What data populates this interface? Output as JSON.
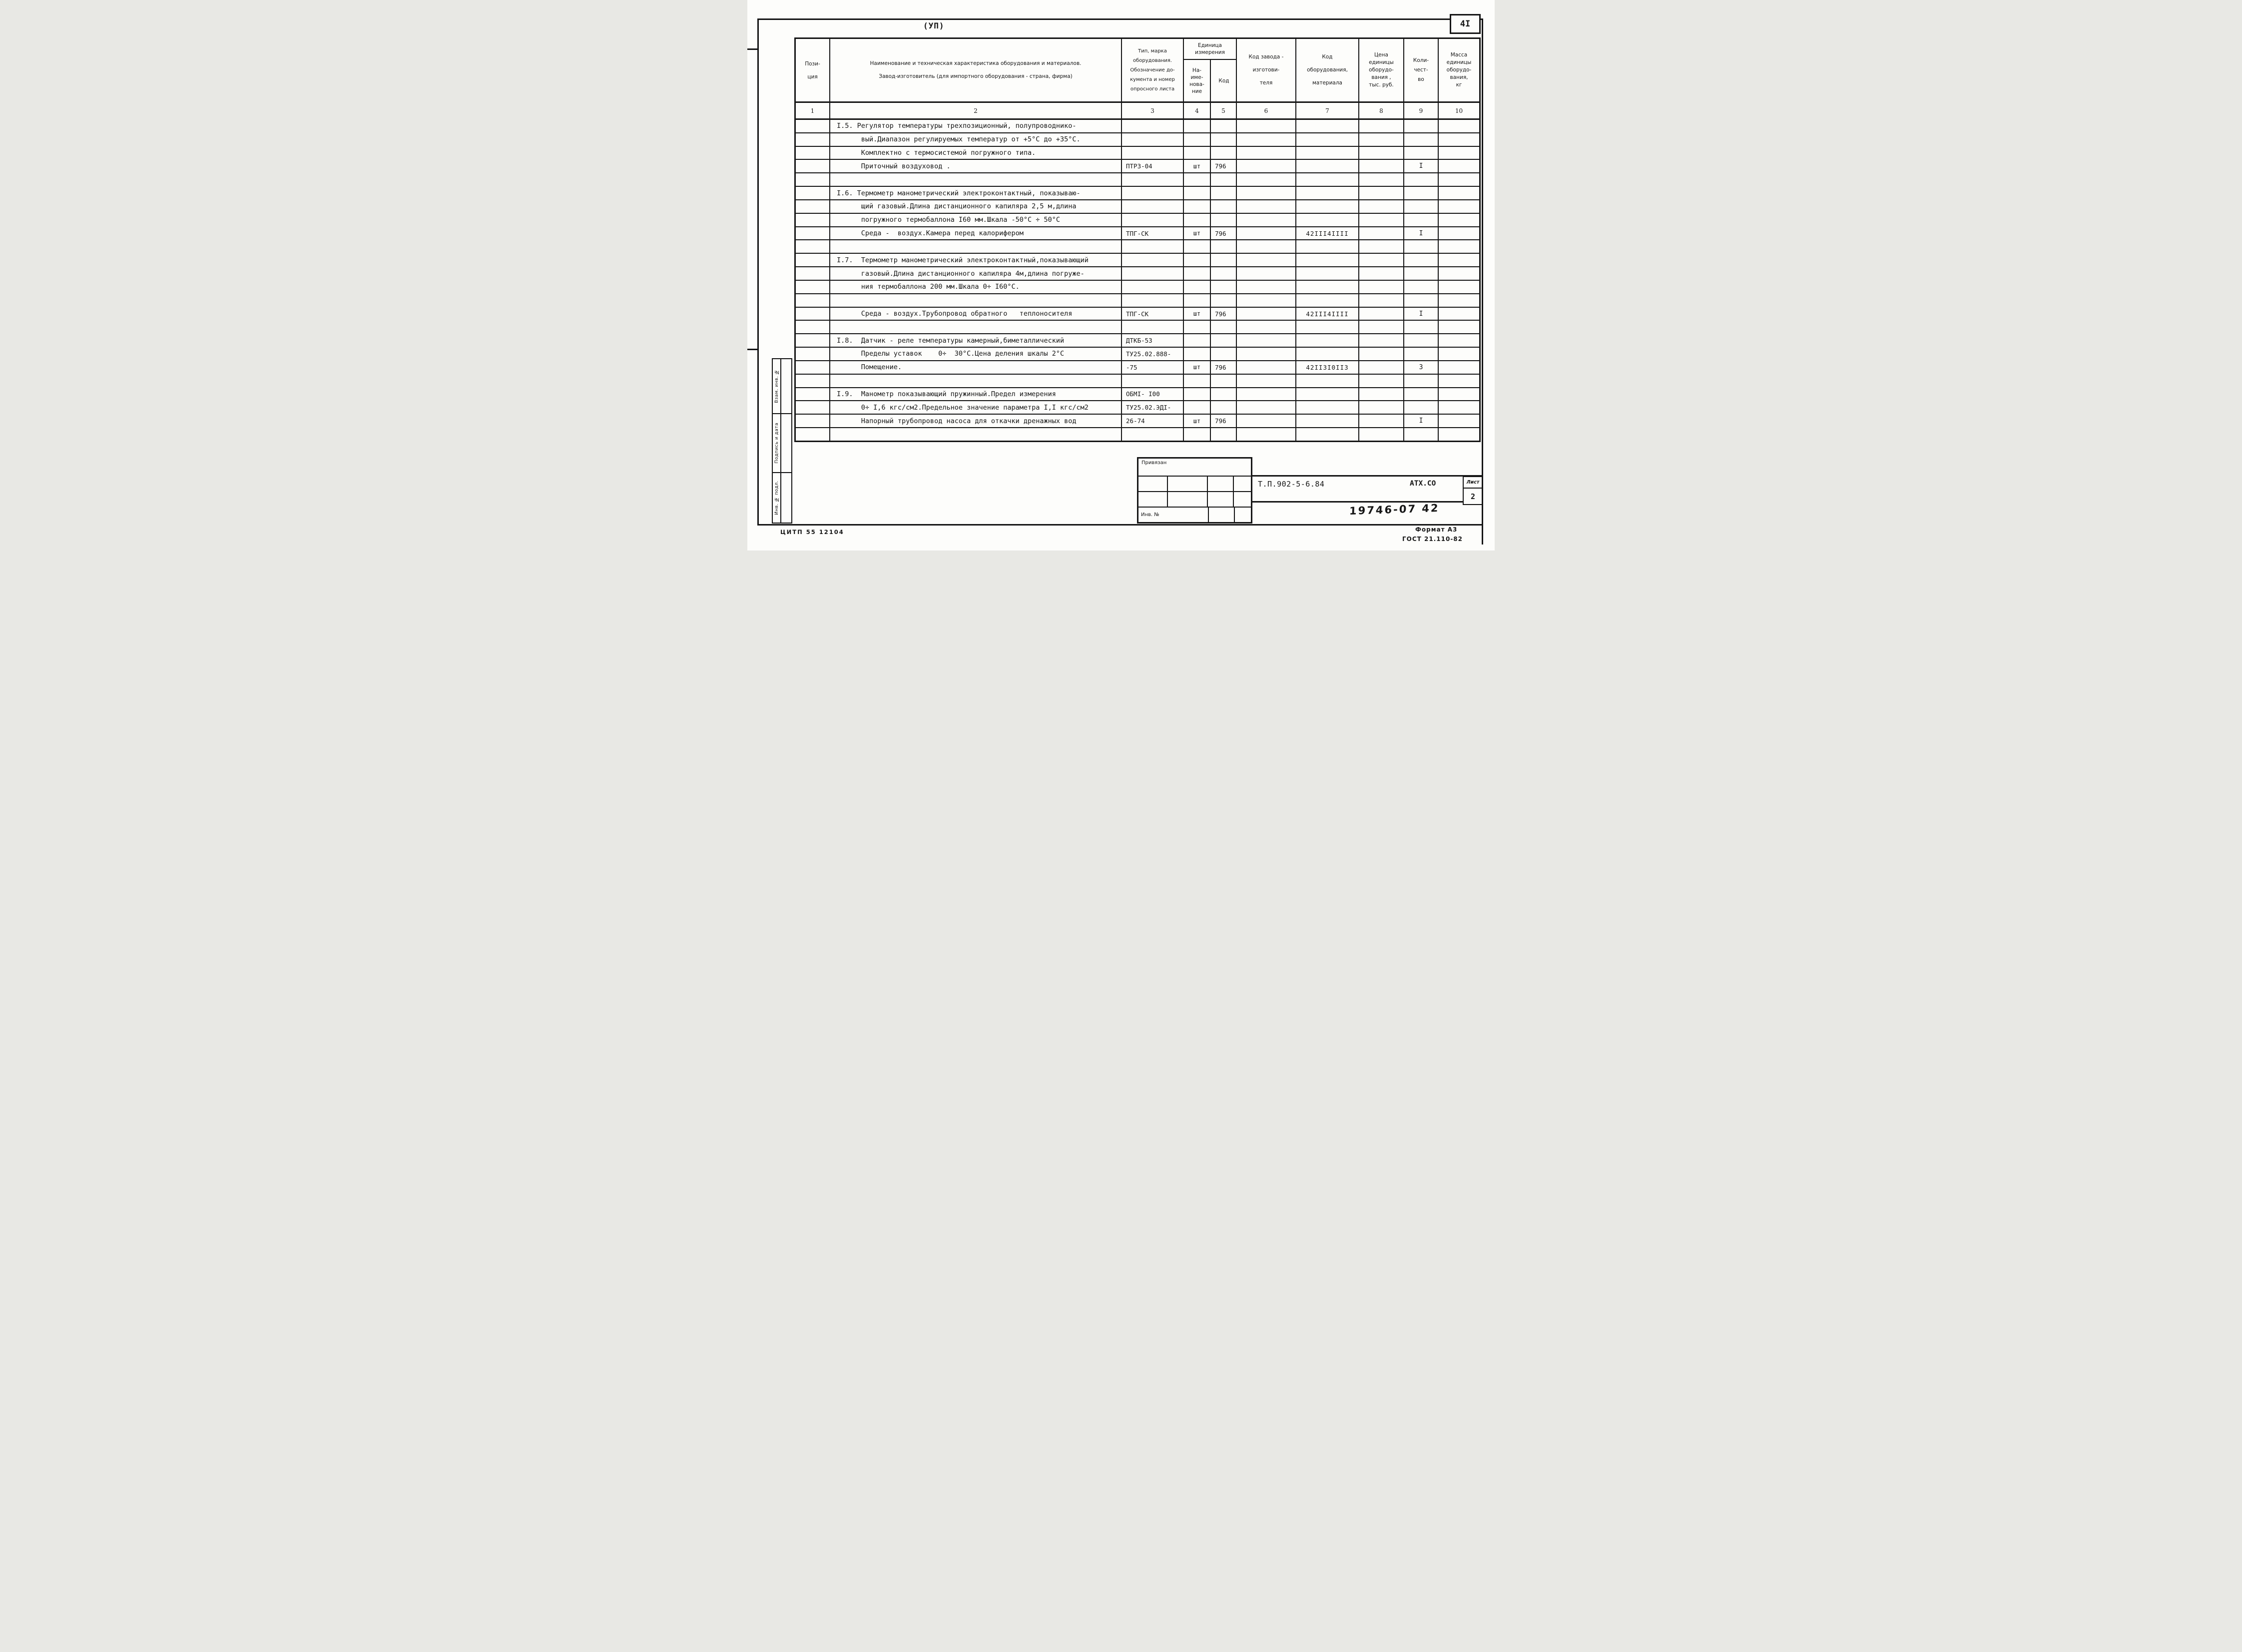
{
  "page": {
    "corner_label": "(УП)",
    "page_number": "4I",
    "cipher": "ЦИТП 55 12104",
    "format_note": "Формат А3",
    "gost_note": "ГОСТ 21.110-82",
    "doc_number": "Т.П.902-5-6.84",
    "org_code": "АТХ.СО",
    "sheet_label": "Лист",
    "sheet_number": "2",
    "handwritten_number": "19746-07  42"
  },
  "sidebar": {
    "items": [
      "Взам. инв. №",
      "Подпись и дата",
      "Инв. № подл."
    ]
  },
  "stamp": {
    "title": "Привязан",
    "inv_label": "Инв. №"
  },
  "table": {
    "headers": {
      "position": "Пози-\nция",
      "name": "Наименование и техническая характеристика  оборудования и материалов.\n\nЗавод-изготовитель  (для импортного оборудования -  страна, фирма)",
      "type": "Тип,    марка\nоборудования.\nОбозначение до-\nкумента и номер\nопросного листа",
      "unit_group": "Единица\nизмерения",
      "unit_name": "На-\nиме-\nнова-\nние",
      "unit_code": "Код",
      "factory_code": "Код  завода -\n\nизготови-\n\nтеля",
      "equip_code": "Код\n\nоборудования,\n\nматериала",
      "price": "Цена\nединицы\nоборудо-\nвания ,\nтыс. руб.",
      "quantity": "Коли-\nчест-\nво",
      "mass": "Масса\nединицы\nоборудо-\nвания,\nкг"
    },
    "column_numbers": [
      "1",
      "2",
      "3",
      "4",
      "5",
      "6",
      "7",
      "8",
      "9",
      "10"
    ],
    "rows": [
      [
        "",
        "I.5. Регулятор температуры трехпозиционный, полупроводнико-",
        "",
        "",
        "",
        "",
        "",
        "",
        "",
        ""
      ],
      [
        "",
        "      вый.Диапазон регулируемых температур от +5°С до +35°С.",
        "",
        "",
        "",
        "",
        "",
        "",
        "",
        ""
      ],
      [
        "",
        "      Комплектно с термосистемой погружного типа.",
        "",
        "",
        "",
        "",
        "",
        "",
        "",
        ""
      ],
      [
        "",
        "      Приточный воздуховод .",
        "ПТРЗ-04",
        "шт",
        "796",
        "",
        "",
        "",
        "I",
        ""
      ],
      [
        "",
        "",
        "",
        "",
        "",
        "",
        "",
        "",
        "",
        ""
      ],
      [
        "",
        "I.6. Термометр манометрический электроконтактный, показываю-",
        "",
        "",
        "",
        "",
        "",
        "",
        "",
        ""
      ],
      [
        "",
        "      щий газовый.Длина дистанционного капиляра 2,5 м,длина",
        "",
        "",
        "",
        "",
        "",
        "",
        "",
        ""
      ],
      [
        "",
        "      погружного термобаллона I60 мм.Шкала -50°С ÷ 50°С",
        "",
        "",
        "",
        "",
        "",
        "",
        "",
        ""
      ],
      [
        "",
        "      Среда -  воздух.Камера перед калорифером",
        "ТПГ-СК",
        "шт",
        "796",
        "",
        "42III4IIII",
        "",
        "I",
        ""
      ],
      [
        "",
        "",
        "",
        "",
        "",
        "",
        "",
        "",
        "",
        ""
      ],
      [
        "",
        "I.7.  Термометр манометрический электроконтактный,показывающий",
        "",
        "",
        "",
        "",
        "",
        "",
        "",
        ""
      ],
      [
        "",
        "      газовый.Длина дистанционного капиляра 4м,длина погруже-",
        "",
        "",
        "",
        "",
        "",
        "",
        "",
        ""
      ],
      [
        "",
        "      ния термобаллона 200 мм.Шкала 0÷ I60°С.",
        "",
        "",
        "",
        "",
        "",
        "",
        "",
        ""
      ],
      [
        "",
        "",
        "",
        "",
        "",
        "",
        "",
        "",
        "",
        ""
      ],
      [
        "",
        "      Среда - воздух.Трубопровод обратного   теплоносителя",
        "ТПГ-СК",
        "шт",
        "796",
        "",
        "42III4IIII",
        "",
        "I",
        ""
      ],
      [
        "",
        "",
        "",
        "",
        "",
        "",
        "",
        "",
        "",
        ""
      ],
      [
        "",
        "I.8.  Датчик - реле температуры камерный,биметаллический",
        "ДТКБ-53",
        "",
        "",
        "",
        "",
        "",
        "",
        ""
      ],
      [
        "",
        "      Пределы уставок    0÷  30°С.Цена деления шкалы 2°С",
        "ТУ25.02.888-",
        "",
        "",
        "",
        "",
        "",
        "",
        ""
      ],
      [
        "",
        "      Помещение.",
        "-75",
        "шт",
        "796",
        "",
        "42II3I0II3",
        "",
        "3",
        ""
      ],
      [
        "",
        "",
        "",
        "",
        "",
        "",
        "",
        "",
        "",
        ""
      ],
      [
        "",
        "I.9.  Манометр показывающий пружинный.Предел измерения",
        "ОБМI- I00",
        "",
        "",
        "",
        "",
        "",
        "",
        ""
      ],
      [
        "",
        "      0÷ I,6 кгс/см2.Предельное значение параметра I,I кгс/см2",
        "ТУ25.02.ЭДI-",
        "",
        "",
        "",
        "",
        "",
        "",
        ""
      ],
      [
        "",
        "      Напорный трубопровод насоса для откачки дренажных вод",
        "26-74",
        "шт",
        "796",
        "",
        "",
        "",
        "I",
        ""
      ],
      [
        "",
        "",
        "",
        "",
        "",
        "",
        "",
        "",
        "",
        ""
      ]
    ]
  }
}
